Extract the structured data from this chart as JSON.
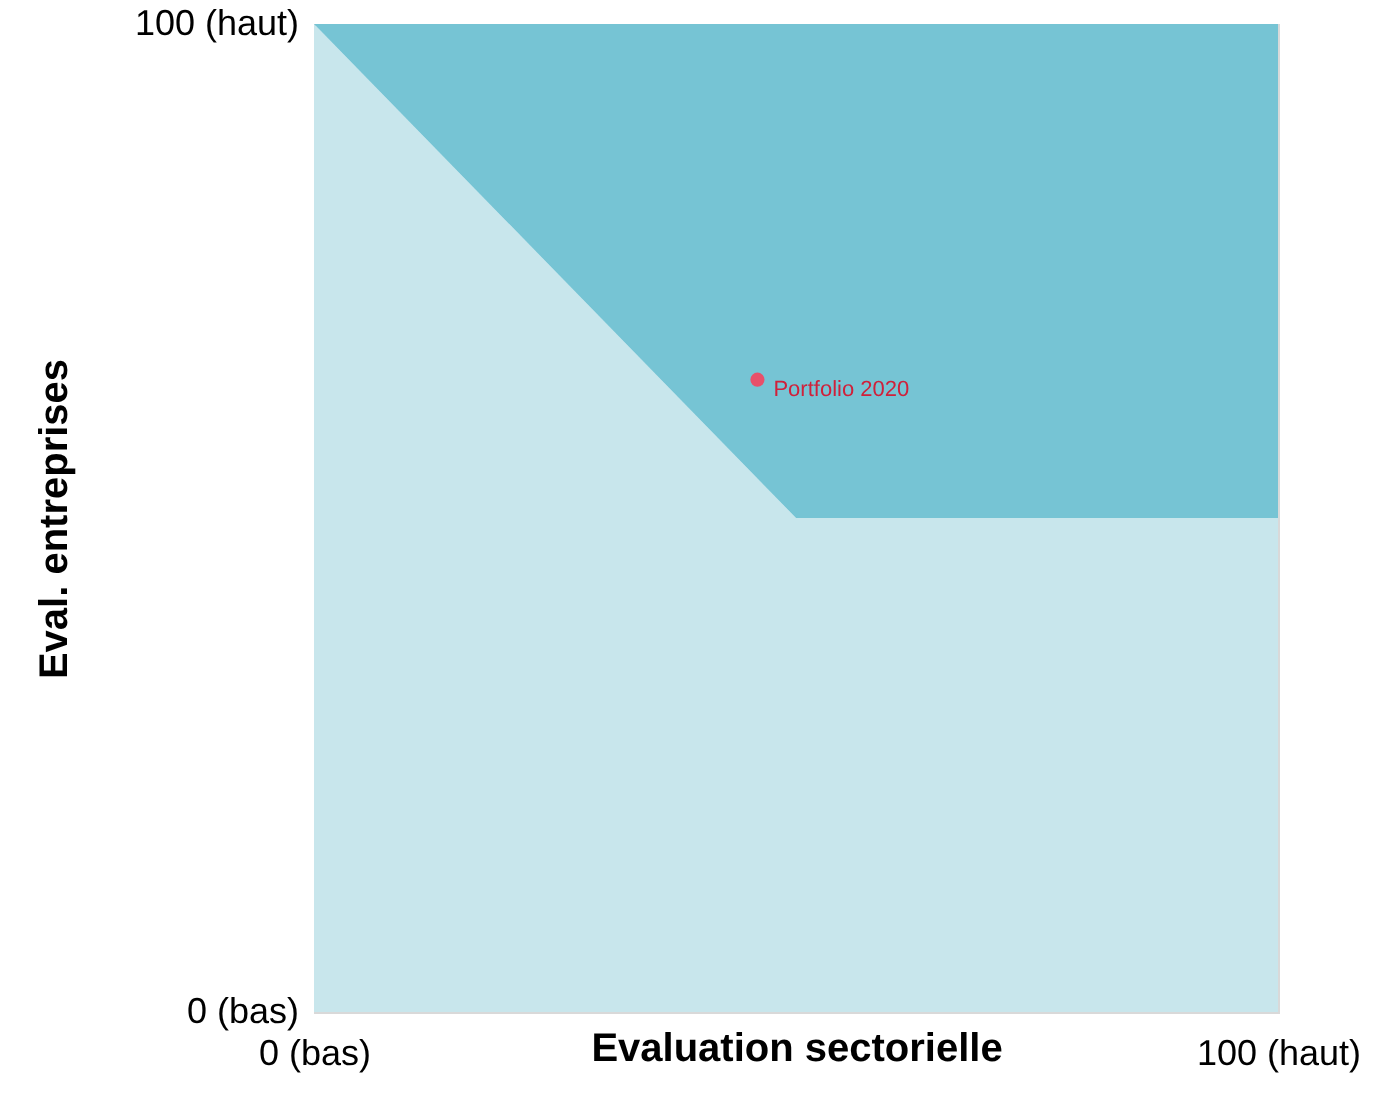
{
  "chart_data": {
    "type": "area",
    "stacked": true,
    "xlabel": "Evaluation sectorielle",
    "ylabel": "Eval. entreprises",
    "x": [
      0,
      50,
      100
    ],
    "xlim": [
      0,
      100
    ],
    "ylim": [
      0,
      100
    ],
    "xticks": [
      {
        "value": 0,
        "label": "0 (bas)"
      },
      {
        "value": 100,
        "label": "100 (haut)"
      }
    ],
    "yticks": [
      {
        "value": 0,
        "label": "0 (bas)"
      },
      {
        "value": 100,
        "label": "100 (haut)"
      }
    ],
    "series": [
      {
        "color": "#c8e6ec",
        "values": [
          100,
          50,
          50
        ]
      },
      {
        "color": "#76c4d4",
        "values": [
          0,
          50,
          50
        ]
      },
      {
        "type": "scatter",
        "name": "Portfolio 2020",
        "color": "#e8506a",
        "x": [
          46
        ],
        "values": [
          64
        ]
      }
    ]
  }
}
